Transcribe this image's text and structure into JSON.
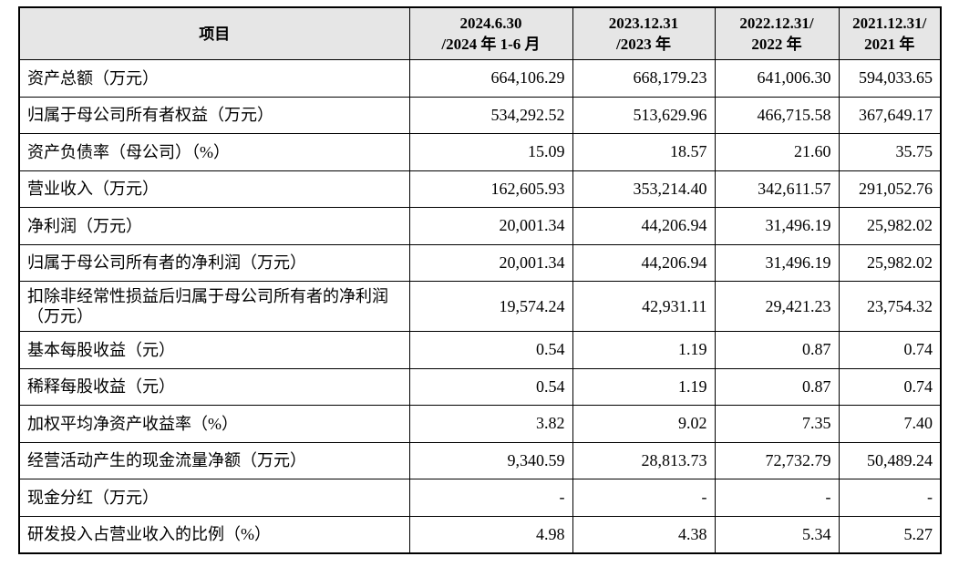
{
  "table": {
    "headers": [
      {
        "line1": "项目",
        "line2": ""
      },
      {
        "line1": "2024.6.30",
        "line2": "/2024 年 1-6 月"
      },
      {
        "line1": "2023.12.31",
        "line2": "/2023 年"
      },
      {
        "line1": "2022.12.31/",
        "line2": "2022 年"
      },
      {
        "line1": "2021.12.31/",
        "line2": "2021 年"
      }
    ],
    "rows": [
      {
        "label": "资产总额（万元）",
        "values": [
          "664,106.29",
          "668,179.23",
          "641,006.30",
          "594,033.65"
        ]
      },
      {
        "label": "归属于母公司所有者权益（万元）",
        "values": [
          "534,292.52",
          "513,629.96",
          "466,715.58",
          "367,649.17"
        ]
      },
      {
        "label": "资产负债率（母公司）（%）",
        "values": [
          "15.09",
          "18.57",
          "21.60",
          "35.75"
        ]
      },
      {
        "label": "营业收入（万元）",
        "values": [
          "162,605.93",
          "353,214.40",
          "342,611.57",
          "291,052.76"
        ]
      },
      {
        "label": "净利润（万元）",
        "values": [
          "20,001.34",
          "44,206.94",
          "31,496.19",
          "25,982.02"
        ]
      },
      {
        "label": "归属于母公司所有者的净利润（万元）",
        "values": [
          "20,001.34",
          "44,206.94",
          "31,496.19",
          "25,982.02"
        ]
      },
      {
        "label": "扣除非经常性损益后归属于母公司所有者的净利润（万元）",
        "values": [
          "19,574.24",
          "42,931.11",
          "29,421.23",
          "23,754.32"
        ]
      },
      {
        "label": "基本每股收益（元）",
        "values": [
          "0.54",
          "1.19",
          "0.87",
          "0.74"
        ]
      },
      {
        "label": "稀释每股收益（元）",
        "values": [
          "0.54",
          "1.19",
          "0.87",
          "0.74"
        ]
      },
      {
        "label": "加权平均净资产收益率（%）",
        "values": [
          "3.82",
          "9.02",
          "7.35",
          "7.40"
        ]
      },
      {
        "label": "经营活动产生的现金流量净额（万元）",
        "values": [
          "9,340.59",
          "28,813.73",
          "72,732.79",
          "50,489.24"
        ]
      },
      {
        "label": "现金分红（万元）",
        "values": [
          "-",
          "-",
          "-",
          "-"
        ]
      },
      {
        "label": "研发投入占营业收入的比例（%）",
        "values": [
          "4.98",
          "4.38",
          "5.34",
          "5.27"
        ]
      }
    ]
  }
}
